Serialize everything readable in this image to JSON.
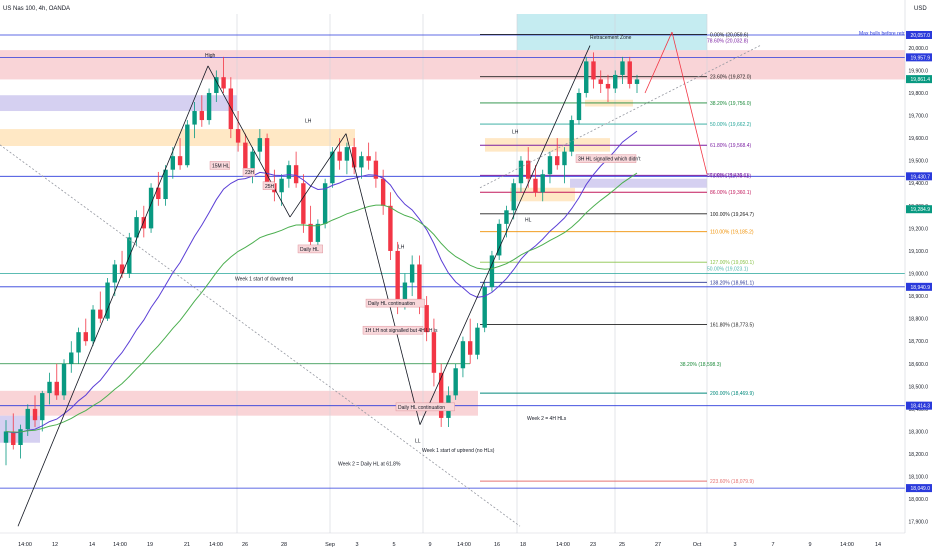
{
  "header": {
    "symbol_line": "US Nas 100, 4h, OANDA",
    "currency": "USD"
  },
  "colors": {
    "up": "#089981",
    "down": "#f23645",
    "ema_purple": "#5b3fd6",
    "ema_green": "#4caf50",
    "red_zone": "#f7c6ca",
    "orange_zone": "#ffe0b2",
    "purple_zone": "#c7c0ec",
    "teal_zone": "#b2e5ec",
    "blue_label": "#2a3adb",
    "green_label": "#0a7a5a"
  },
  "chart_data": {
    "type": "candlestick",
    "title": "US Nas 100, 4h, OANDA",
    "ylim": [
      17850,
      20150
    ],
    "yticks": [
      20000,
      19900,
      19800,
      19700,
      19600,
      19500,
      19400,
      19300,
      19200,
      19100,
      19000,
      18900,
      18800,
      18700,
      18600,
      18500,
      18400,
      18300,
      18200,
      18100,
      18000,
      17900
    ],
    "xlabels": [
      "14:00",
      "12",
      "14",
      "14:00",
      "19",
      "21",
      "14:00",
      "26",
      "28",
      "Sep",
      "3",
      "5",
      "9",
      "14:00",
      "16",
      "18",
      "14:00",
      "23",
      "25",
      "27",
      "Oct",
      "3",
      "7",
      "9",
      "14:00",
      "14"
    ],
    "price_labels": [
      {
        "value": 20057.0,
        "text": "20,057.0",
        "color": "#2a3adb"
      },
      {
        "value": 19957.9,
        "text": "19,957.9",
        "color": "#2a3adb"
      },
      {
        "value": 19861.4,
        "text": "19,861.4",
        "color": "#089981"
      },
      {
        "value": 19430.7,
        "text": "19,430.7",
        "color": "#2a3adb"
      },
      {
        "value": 19284.9,
        "text": "19,284.9",
        "color": "#089981"
      },
      {
        "value": 18940.9,
        "text": "18,940.9",
        "color": "#2a3adb"
      },
      {
        "value": 18414.3,
        "text": "18,414.3",
        "color": "#2a3adb"
      },
      {
        "value": 18049.0,
        "text": "18,049.0",
        "color": "#2a3adb"
      }
    ],
    "fib_levels": [
      {
        "label": "0.00% (20,059.6)",
        "value": 20059.6,
        "color": "#222222"
      },
      {
        "label": "23.60% (19,872.0)",
        "value": 19872.0,
        "color": "#222222"
      },
      {
        "label": "38.20% (19,756.0)",
        "value": 19756.0,
        "color": "#1b8a3a"
      },
      {
        "label": "50.00% (19,662.2)",
        "value": 19662.2,
        "color": "#26a69a"
      },
      {
        "label": "61.80% (19,568.4)",
        "value": 19568.4,
        "color": "#7b1fa2"
      },
      {
        "label": "78.60% (19,434.8)",
        "value": 19434.8,
        "color": "#7b1fa2"
      },
      {
        "label": "86.00% (19,360.1)",
        "value": 19360.1,
        "color": "#c2185b"
      },
      {
        "label": "100.00% (19,264.7)",
        "value": 19264.7,
        "color": "#222222"
      },
      {
        "label": "110.00% (19,185.2)",
        "value": 19185.2,
        "color": "#ef8f00"
      },
      {
        "label": "127.00% (19,050.1)",
        "value": 19050.1,
        "color": "#8bc34a"
      },
      {
        "label": "138.20% (18,961.1)",
        "value": 18961.1,
        "color": "#283593"
      },
      {
        "label": "161.80% (18,773.5)",
        "value": 18773.5,
        "color": "#222222"
      },
      {
        "label": "200.00% (18,469.9)",
        "value": 18469.9,
        "color": "#00897b"
      },
      {
        "label": "223.60% (18,079.9)",
        "value": 18079.9,
        "color": "#e57373"
      }
    ],
    "extra_labels": [
      {
        "label": "78.60% (20,032.8)",
        "value": 20032.8,
        "color": "#7b1fa2"
      },
      {
        "label": "38.20% (18,598.3)",
        "value": 18598.3,
        "color": "#1b8a3a"
      },
      {
        "label": "86.00% (19,436.1)",
        "value": 19436.1,
        "color": "#7b1fa2"
      },
      {
        "label": "50.00% (19,023.1)",
        "value": 19023.1,
        "color": "#4db6ac"
      },
      {
        "label": "Max bulls before retracement",
        "value": 20066,
        "color": "#2a3adb"
      }
    ],
    "annotations": [
      {
        "text": "High"
      },
      {
        "text": "LH"
      },
      {
        "text": "LH"
      },
      {
        "text": "15M HL"
      },
      {
        "text": "23H"
      },
      {
        "text": "25H"
      },
      {
        "text": "Daily HL"
      },
      {
        "text": "Week 1 start of downtrend"
      },
      {
        "text": "Daily HL continuation"
      },
      {
        "text": "1H LH not signalled but 4H LH is"
      },
      {
        "text": "Daily HL continuation"
      },
      {
        "text": "LL"
      },
      {
        "text": "Week 1 start of uptrend (no HLs)"
      },
      {
        "text": "Week 2 = Daily HL at 61.8%"
      },
      {
        "text": "Week 2 = 4H HLs"
      },
      {
        "text": "HL"
      },
      {
        "text": "3H HL signalled which didn't"
      },
      {
        "text": "Retracement Zone"
      },
      {
        "text": "LH"
      }
    ],
    "series": [
      {
        "name": "ohlc",
        "values": [
          [
            18250,
            18350,
            18150,
            18300
          ],
          [
            18300,
            18380,
            18220,
            18240
          ],
          [
            18240,
            18330,
            18180,
            18310
          ],
          [
            18310,
            18420,
            18280,
            18400
          ],
          [
            18400,
            18460,
            18320,
            18350
          ],
          [
            18350,
            18480,
            18300,
            18470
          ],
          [
            18470,
            18560,
            18420,
            18520
          ],
          [
            18520,
            18600,
            18440,
            18460
          ],
          [
            18460,
            18620,
            18440,
            18600
          ],
          [
            18600,
            18700,
            18560,
            18650
          ],
          [
            18650,
            18760,
            18600,
            18740
          ],
          [
            18740,
            18800,
            18680,
            18700
          ],
          [
            18700,
            18860,
            18680,
            18840
          ],
          [
            18840,
            18920,
            18780,
            18800
          ],
          [
            18800,
            18980,
            18790,
            18960
          ],
          [
            18960,
            19060,
            18900,
            19040
          ],
          [
            19040,
            19100,
            18980,
            19000
          ],
          [
            19000,
            19180,
            18980,
            19160
          ],
          [
            19160,
            19280,
            19120,
            19250
          ],
          [
            19250,
            19300,
            19160,
            19200
          ],
          [
            19200,
            19400,
            19180,
            19380
          ],
          [
            19380,
            19450,
            19300,
            19330
          ],
          [
            19330,
            19480,
            19300,
            19460
          ],
          [
            19460,
            19560,
            19420,
            19520
          ],
          [
            19520,
            19600,
            19460,
            19480
          ],
          [
            19480,
            19680,
            19470,
            19660
          ],
          [
            19660,
            19760,
            19600,
            19720
          ],
          [
            19720,
            19790,
            19650,
            19680
          ],
          [
            19680,
            19820,
            19660,
            19800
          ],
          [
            19800,
            19900,
            19760,
            19870
          ],
          [
            19870,
            19960,
            19800,
            19820
          ],
          [
            19820,
            19870,
            19600,
            19640
          ],
          [
            19640,
            19720,
            19540,
            19580
          ],
          [
            19580,
            19620,
            19440,
            19460
          ],
          [
            19460,
            19560,
            19400,
            19540
          ],
          [
            19540,
            19640,
            19500,
            19600
          ],
          [
            19600,
            19620,
            19380,
            19400
          ],
          [
            19400,
            19460,
            19320,
            19360
          ],
          [
            19360,
            19440,
            19300,
            19420
          ],
          [
            19420,
            19500,
            19380,
            19480
          ],
          [
            19480,
            19540,
            19380,
            19400
          ],
          [
            19400,
            19440,
            19180,
            19220
          ],
          [
            19220,
            19300,
            19100,
            19140
          ],
          [
            19140,
            19240,
            19120,
            19220
          ],
          [
            19220,
            19420,
            19200,
            19400
          ],
          [
            19400,
            19560,
            19380,
            19540
          ],
          [
            19540,
            19600,
            19460,
            19500
          ],
          [
            19500,
            19580,
            19440,
            19560
          ],
          [
            19560,
            19600,
            19440,
            19470
          ],
          [
            19470,
            19540,
            19420,
            19520
          ],
          [
            19520,
            19580,
            19460,
            19500
          ],
          [
            19500,
            19540,
            19380,
            19420
          ],
          [
            19420,
            19460,
            19260,
            19300
          ],
          [
            19300,
            19360,
            19060,
            19100
          ],
          [
            19100,
            19140,
            18820,
            18880
          ],
          [
            18880,
            19000,
            18840,
            18960
          ],
          [
            18960,
            19080,
            18900,
            19040
          ],
          [
            19040,
            19080,
            18820,
            18860
          ],
          [
            18860,
            18900,
            18700,
            18740
          ],
          [
            18740,
            18800,
            18500,
            18560
          ],
          [
            18560,
            18600,
            18320,
            18360
          ],
          [
            18360,
            18500,
            18320,
            18460
          ],
          [
            18460,
            18600,
            18440,
            18580
          ],
          [
            18580,
            18720,
            18540,
            18700
          ],
          [
            18700,
            18800,
            18600,
            18640
          ],
          [
            18640,
            18780,
            18620,
            18760
          ],
          [
            18760,
            18960,
            18740,
            18940
          ],
          [
            18940,
            19100,
            18920,
            19080
          ],
          [
            19080,
            19240,
            19060,
            19220
          ],
          [
            19220,
            19300,
            19160,
            19280
          ],
          [
            19280,
            19420,
            19240,
            19400
          ],
          [
            19400,
            19520,
            19360,
            19500
          ],
          [
            19500,
            19560,
            19380,
            19420
          ],
          [
            19420,
            19480,
            19340,
            19360
          ],
          [
            19360,
            19460,
            19320,
            19440
          ],
          [
            19440,
            19540,
            19400,
            19520
          ],
          [
            19520,
            19600,
            19460,
            19480
          ],
          [
            19480,
            19560,
            19400,
            19540
          ],
          [
            19540,
            19700,
            19520,
            19680
          ],
          [
            19680,
            19820,
            19660,
            19800
          ],
          [
            19800,
            19960,
            19780,
            19940
          ],
          [
            19940,
            19980,
            19820,
            19860
          ],
          [
            19860,
            19900,
            19800,
            19840
          ],
          [
            19840,
            19880,
            19760,
            19820
          ],
          [
            19820,
            19900,
            19800,
            19880
          ],
          [
            19880,
            19960,
            19840,
            19940
          ],
          [
            19940,
            19960,
            19820,
            19840
          ],
          [
            19840,
            19880,
            19800,
            19860
          ]
        ]
      }
    ]
  }
}
